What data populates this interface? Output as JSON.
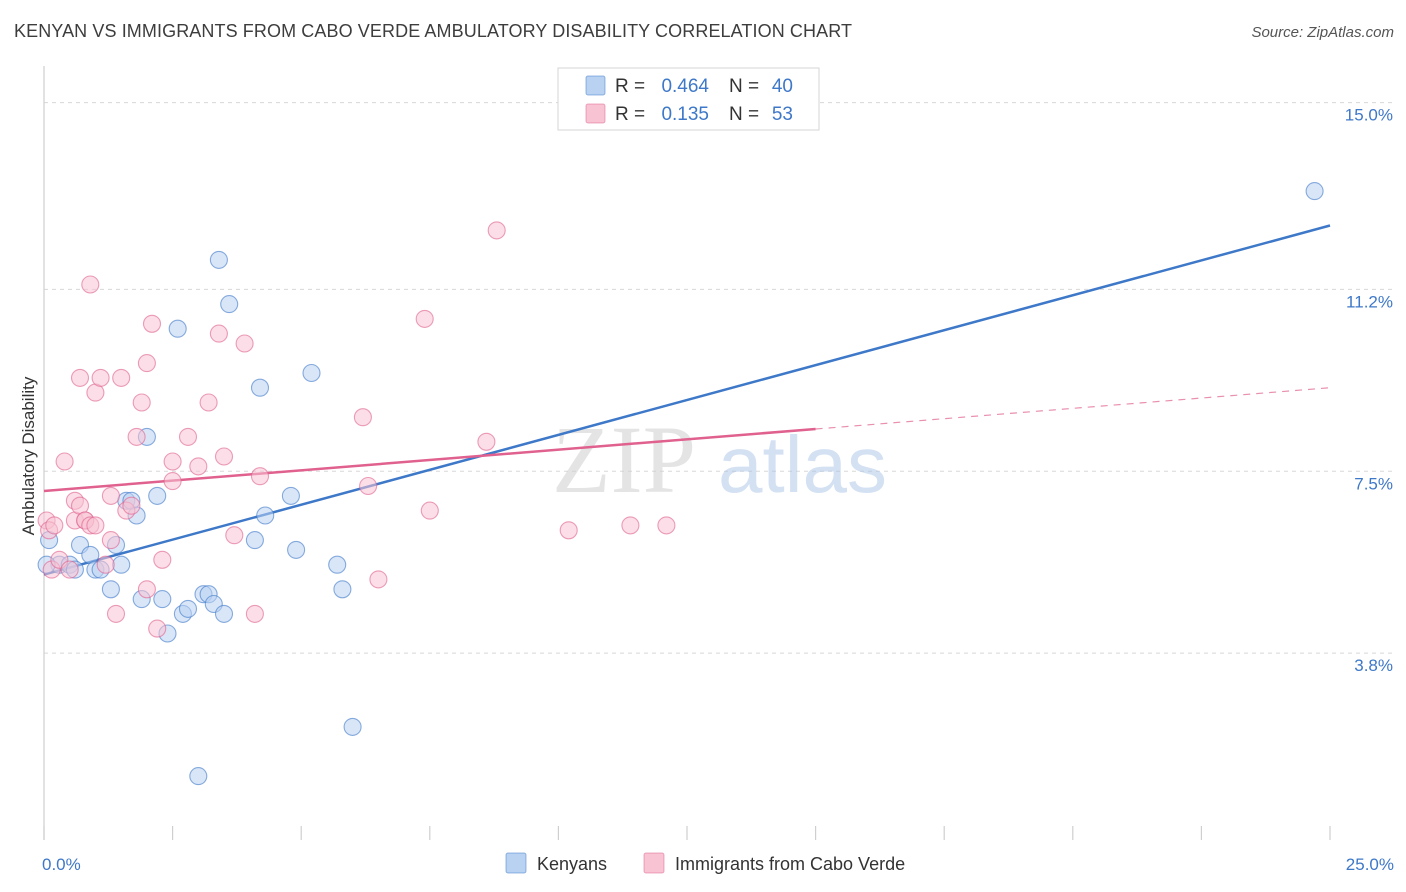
{
  "title": "KENYAN VS IMMIGRANTS FROM CABO VERDE AMBULATORY DISABILITY CORRELATION CHART",
  "source": "Source: ZipAtlas.com",
  "colors": {
    "blue": "#3e78c8",
    "blue_fill": "#b9d2f2",
    "pink": "#e0608e",
    "pink_fill": "#f8c3d3",
    "grid": "#d8d8d8"
  },
  "legend": {
    "rows": [
      {
        "r_label": "R =",
        "r_value": "0.464",
        "n_label": "N =",
        "n_value": "40",
        "color": "#b9d2f2"
      },
      {
        "r_label": "R =",
        "r_value": "0.135",
        "n_label": "N =",
        "n_value": "53",
        "color": "#f8c3d3"
      }
    ]
  },
  "watermark": {
    "zip": "ZIP",
    "atlas": "atlas"
  },
  "chart_data": {
    "type": "scatter",
    "title": "KENYAN VS IMMIGRANTS FROM CABO VERDE AMBULATORY DISABILITY CORRELATION CHART",
    "xlabel": "",
    "ylabel": "Ambulatory Disability",
    "xlim": [
      0,
      25
    ],
    "ylim": [
      0,
      15.5
    ],
    "x_tick_labels": [
      "0.0%",
      "25.0%"
    ],
    "y_ticks": [
      3.8,
      7.5,
      11.2,
      15.0
    ],
    "y_tick_labels": [
      "3.8%",
      "7.5%",
      "11.2%",
      "15.0%"
    ],
    "grid": true,
    "legend_position": "top-center",
    "series": [
      {
        "name": "Kenyans",
        "color": "#3e78c8",
        "points": [
          [
            0.1,
            6.1
          ],
          [
            0.3,
            5.6
          ],
          [
            0.5,
            5.6
          ],
          [
            0.6,
            5.5
          ],
          [
            0.7,
            6.0
          ],
          [
            0.9,
            5.8
          ],
          [
            1.0,
            5.5
          ],
          [
            1.1,
            5.5
          ],
          [
            1.3,
            5.1
          ],
          [
            1.4,
            6.0
          ],
          [
            1.5,
            5.6
          ],
          [
            1.6,
            6.9
          ],
          [
            1.7,
            6.9
          ],
          [
            1.8,
            6.6
          ],
          [
            1.9,
            4.9
          ],
          [
            2.0,
            8.2
          ],
          [
            2.2,
            7.0
          ],
          [
            2.3,
            4.9
          ],
          [
            2.4,
            4.2
          ],
          [
            2.6,
            10.4
          ],
          [
            2.7,
            4.6
          ],
          [
            2.8,
            4.7
          ],
          [
            3.0,
            1.3
          ],
          [
            3.1,
            5.0
          ],
          [
            3.2,
            5.0
          ],
          [
            3.3,
            4.8
          ],
          [
            3.4,
            11.8
          ],
          [
            3.5,
            4.6
          ],
          [
            3.6,
            10.9
          ],
          [
            4.1,
            6.1
          ],
          [
            4.2,
            9.2
          ],
          [
            4.3,
            6.6
          ],
          [
            4.8,
            7.0
          ],
          [
            4.9,
            5.9
          ],
          [
            5.2,
            9.5
          ],
          [
            5.7,
            5.6
          ],
          [
            5.8,
            5.1
          ],
          [
            6.0,
            2.3
          ],
          [
            24.7,
            13.2
          ],
          [
            0.05,
            5.6
          ]
        ],
        "trend": {
          "x": [
            0,
            25
          ],
          "y": [
            5.4,
            12.5
          ],
          "dashed_from": null
        }
      },
      {
        "name": "Immigrants from Cabo Verde",
        "color": "#e0608e",
        "points": [
          [
            0.05,
            6.5
          ],
          [
            0.1,
            6.3
          ],
          [
            0.15,
            5.5
          ],
          [
            0.2,
            6.4
          ],
          [
            0.3,
            5.7
          ],
          [
            0.4,
            7.7
          ],
          [
            0.5,
            5.5
          ],
          [
            0.6,
            6.9
          ],
          [
            0.6,
            6.5
          ],
          [
            0.7,
            9.4
          ],
          [
            0.7,
            6.8
          ],
          [
            0.8,
            6.5
          ],
          [
            0.8,
            6.5
          ],
          [
            0.9,
            6.4
          ],
          [
            0.9,
            11.3
          ],
          [
            1.0,
            9.1
          ],
          [
            1.0,
            6.4
          ],
          [
            1.1,
            9.4
          ],
          [
            1.2,
            5.6
          ],
          [
            1.3,
            6.1
          ],
          [
            1.3,
            7.0
          ],
          [
            1.4,
            4.6
          ],
          [
            1.5,
            9.4
          ],
          [
            1.6,
            6.7
          ],
          [
            1.7,
            6.8
          ],
          [
            1.8,
            8.2
          ],
          [
            1.9,
            8.9
          ],
          [
            2.0,
            5.1
          ],
          [
            2.0,
            9.7
          ],
          [
            2.1,
            10.5
          ],
          [
            2.2,
            4.3
          ],
          [
            2.3,
            5.7
          ],
          [
            2.5,
            7.3
          ],
          [
            2.5,
            7.7
          ],
          [
            2.8,
            8.2
          ],
          [
            3.0,
            7.6
          ],
          [
            3.2,
            8.9
          ],
          [
            3.4,
            10.3
          ],
          [
            3.5,
            7.8
          ],
          [
            3.7,
            6.2
          ],
          [
            3.9,
            10.1
          ],
          [
            4.1,
            4.6
          ],
          [
            4.2,
            7.4
          ],
          [
            6.2,
            8.6
          ],
          [
            6.3,
            7.2
          ],
          [
            6.5,
            5.3
          ],
          [
            7.4,
            10.6
          ],
          [
            7.5,
            6.7
          ],
          [
            8.6,
            8.1
          ],
          [
            8.8,
            12.4
          ],
          [
            10.2,
            6.3
          ],
          [
            11.4,
            6.4
          ],
          [
            12.1,
            6.4
          ]
        ],
        "trend": {
          "x": [
            0,
            25
          ],
          "y": [
            7.1,
            9.2
          ],
          "dashed_from": 15
        }
      }
    ]
  },
  "bottom_legend": [
    {
      "label": "Kenyans",
      "color": "#b9d2f2"
    },
    {
      "label": "Immigrants from Cabo Verde",
      "color": "#f8c3d3"
    }
  ]
}
